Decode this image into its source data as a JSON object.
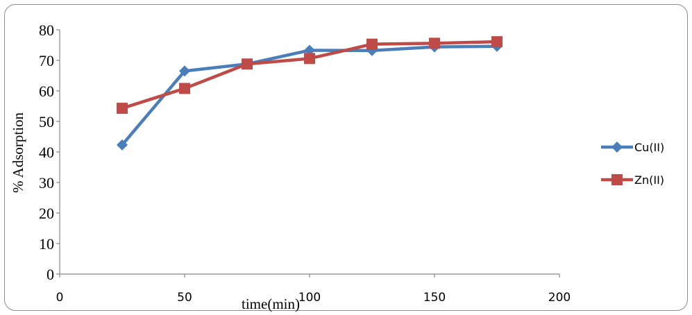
{
  "chart_data": {
    "type": "line",
    "xlabel": "time(min)",
    "ylabel": "% Adsorption",
    "xlim": [
      0,
      200
    ],
    "ylim": [
      0,
      80
    ],
    "x_ticks": [
      "0",
      "50",
      "100",
      "150",
      "200"
    ],
    "y_ticks": [
      "0",
      "10",
      "20",
      "30",
      "40",
      "50",
      "60",
      "70",
      "80"
    ],
    "grid": false,
    "legend_position": "right",
    "x": [
      25,
      50,
      75,
      100,
      125,
      150,
      175
    ],
    "series": [
      {
        "name": "Cu(II)",
        "marker": "diamond",
        "color": "#4a7ebb",
        "values": [
          42.3,
          66.5,
          68.8,
          73.3,
          73.2,
          74.4,
          74.6
        ]
      },
      {
        "name": "Zn(II)",
        "marker": "square",
        "color": "#be4b48",
        "values": [
          54.3,
          60.8,
          68.8,
          70.6,
          75.3,
          75.6,
          76.1
        ]
      }
    ]
  }
}
